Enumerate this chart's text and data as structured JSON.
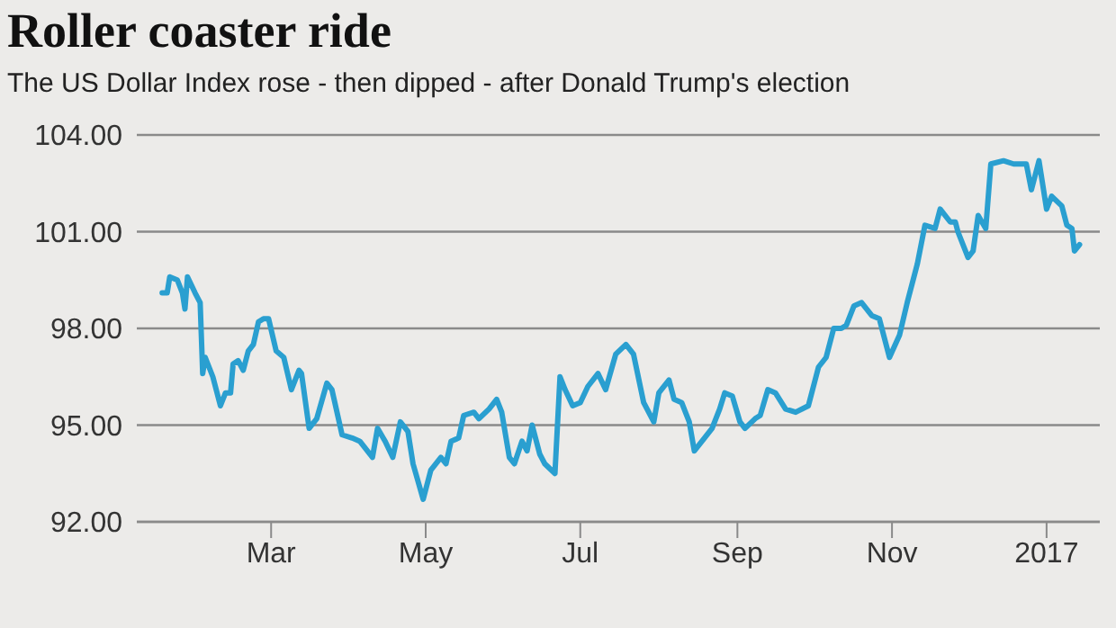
{
  "chart_data": {
    "type": "line",
    "title": "Roller coaster ride",
    "subtitle": "The US Dollar Index rose - then dipped - after Donald Trump's election",
    "x": [
      "2016-01-18",
      "2016-01-20",
      "2016-01-21",
      "2016-01-24",
      "2016-01-26",
      "2016-01-27",
      "2016-01-28",
      "2016-01-31",
      "2016-02-02",
      "2016-02-03",
      "2016-02-04",
      "2016-02-07",
      "2016-02-10",
      "2016-02-12",
      "2016-02-14",
      "2016-02-15",
      "2016-02-17",
      "2016-02-19",
      "2016-02-21",
      "2016-02-23",
      "2016-02-25",
      "2016-02-27",
      "2016-02-29",
      "2016-03-03",
      "2016-03-06",
      "2016-03-09",
      "2016-03-12",
      "2016-03-13",
      "2016-03-16",
      "2016-03-19",
      "2016-03-23",
      "2016-03-25",
      "2016-03-29",
      "2016-04-02",
      "2016-04-05",
      "2016-04-10",
      "2016-04-12",
      "2016-04-15",
      "2016-04-18",
      "2016-04-21",
      "2016-04-24",
      "2016-04-26",
      "2016-04-30",
      "2016-05-03",
      "2016-05-07",
      "2016-05-09",
      "2016-05-11",
      "2016-05-14",
      "2016-05-16",
      "2016-05-20",
      "2016-05-22",
      "2016-05-26",
      "2016-05-29",
      "2016-05-31",
      "2016-06-03",
      "2016-06-05",
      "2016-06-08",
      "2016-06-10",
      "2016-06-12",
      "2016-06-15",
      "2016-06-17",
      "2016-06-21",
      "2016-06-23",
      "2016-06-25",
      "2016-06-28",
      "2016-07-01",
      "2016-07-04",
      "2016-07-08",
      "2016-07-11",
      "2016-07-15",
      "2016-07-19",
      "2016-07-22",
      "2016-07-26",
      "2016-07-30",
      "2016-08-01",
      "2016-08-05",
      "2016-08-07",
      "2016-08-10",
      "2016-08-13",
      "2016-08-15",
      "2016-08-19",
      "2016-08-22",
      "2016-08-25",
      "2016-08-27",
      "2016-08-30",
      "2016-09-02",
      "2016-09-04",
      "2016-09-08",
      "2016-09-10",
      "2016-09-13",
      "2016-09-16",
      "2016-09-20",
      "2016-09-24",
      "2016-09-29",
      "2016-10-03",
      "2016-10-06",
      "2016-10-09",
      "2016-10-12",
      "2016-10-14",
      "2016-10-17",
      "2016-10-20",
      "2016-10-24",
      "2016-10-27",
      "2016-10-31",
      "2016-11-04",
      "2016-11-07",
      "2016-11-11",
      "2016-11-14",
      "2016-11-18",
      "2016-11-20",
      "2016-11-24",
      "2016-11-26",
      "2016-11-27",
      "2016-12-01",
      "2016-12-03",
      "2016-12-05",
      "2016-12-08",
      "2016-12-10",
      "2016-12-15",
      "2016-12-19",
      "2016-12-24",
      "2016-12-26",
      "2016-12-29",
      "2017-01-01",
      "2017-01-03",
      "2017-01-07",
      "2017-01-09",
      "2017-01-11",
      "2017-01-12",
      "2017-01-14"
    ],
    "series": [
      {
        "color": "#2a9fd0",
        "values": [
          99.1,
          99.1,
          99.6,
          99.5,
          99.1,
          98.6,
          99.6,
          99.1,
          98.8,
          96.6,
          97.1,
          96.5,
          95.6,
          96.0,
          96.0,
          96.9,
          97.0,
          96.7,
          97.3,
          97.5,
          98.2,
          98.3,
          98.3,
          97.3,
          97.1,
          96.1,
          96.7,
          96.6,
          94.9,
          95.2,
          96.3,
          96.1,
          94.7,
          94.6,
          94.5,
          94.0,
          94.9,
          94.5,
          94.0,
          95.1,
          94.8,
          93.8,
          92.7,
          93.6,
          94.0,
          93.8,
          94.5,
          94.6,
          95.3,
          95.4,
          95.2,
          95.5,
          95.8,
          95.4,
          94.0,
          93.8,
          94.5,
          94.2,
          95.0,
          94.1,
          93.8,
          93.5,
          96.5,
          96.1,
          95.6,
          95.7,
          96.2,
          96.6,
          96.1,
          97.2,
          97.5,
          97.2,
          95.7,
          95.1,
          96.0,
          96.4,
          95.8,
          95.7,
          95.1,
          94.2,
          94.6,
          94.9,
          95.5,
          96.0,
          95.9,
          95.1,
          94.9,
          95.2,
          95.3,
          96.1,
          96.0,
          95.5,
          95.4,
          95.6,
          96.8,
          97.1,
          98.0,
          98.0,
          98.1,
          98.7,
          98.8,
          98.4,
          98.3,
          97.1,
          97.8,
          98.8,
          100.0,
          101.2,
          101.1,
          101.7,
          101.3,
          101.3,
          101.0,
          100.2,
          100.4,
          101.5,
          101.1,
          103.1,
          103.2,
          103.1,
          103.1,
          102.3,
          103.2,
          101.7,
          102.1,
          101.8,
          101.2,
          101.1,
          100.4,
          100.6
        ]
      }
    ],
    "xlim": [
      "2016-01-08",
      "2017-01-22"
    ],
    "xticks": [
      {
        "value": "2016-03-01",
        "label": "Mar"
      },
      {
        "value": "2016-05-01",
        "label": "May"
      },
      {
        "value": "2016-07-01",
        "label": "Jul"
      },
      {
        "value": "2016-09-01",
        "label": "Sep"
      },
      {
        "value": "2016-11-01",
        "label": "Nov"
      },
      {
        "value": "2017-01-01",
        "label": "2017"
      }
    ],
    "ylim": [
      92,
      104
    ],
    "yticks": [
      {
        "value": 92,
        "label": "92.00"
      },
      {
        "value": 95,
        "label": "95.00"
      },
      {
        "value": 98,
        "label": "98.00"
      },
      {
        "value": 101,
        "label": "101.00"
      },
      {
        "value": 104,
        "label": "104.00"
      }
    ],
    "grid": "y",
    "marker": "none",
    "line_style": "solid"
  }
}
